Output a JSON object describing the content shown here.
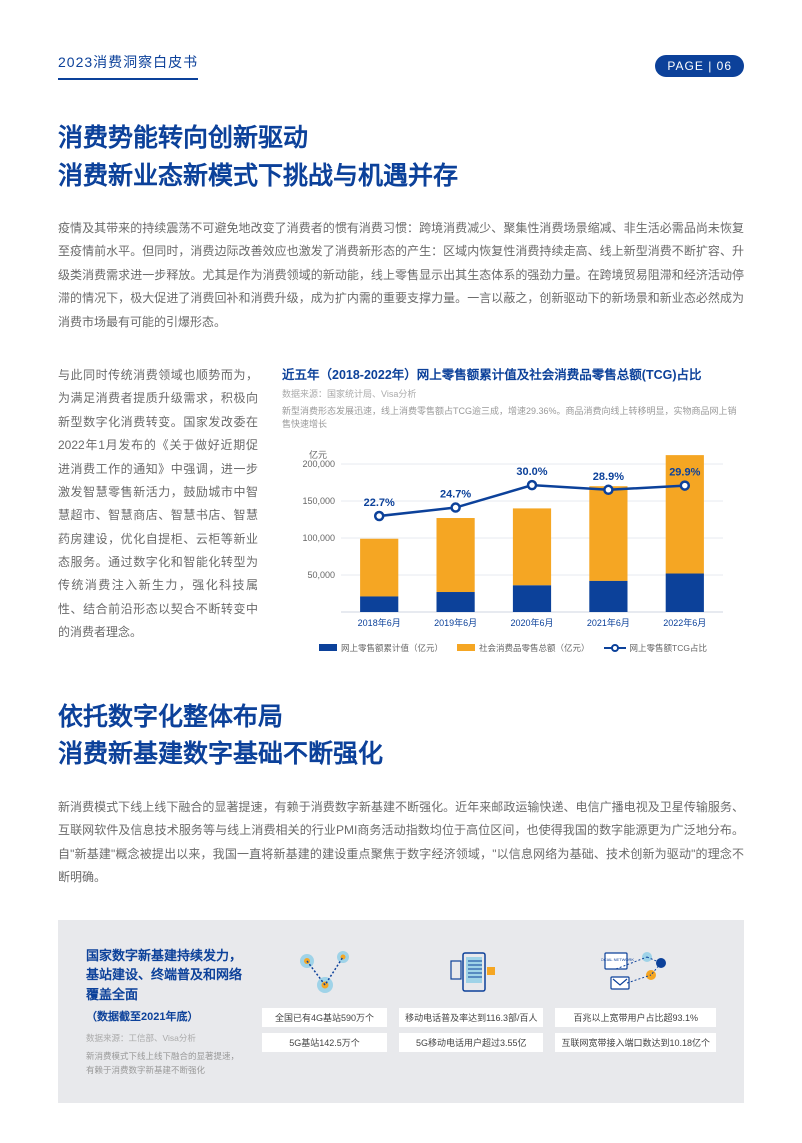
{
  "header": {
    "doc_title": "2023消费洞察白皮书",
    "page_label": "PAGE | 06"
  },
  "section1": {
    "heading_line1": "消费势能转向创新驱动",
    "heading_line2": "消费新业态新模式下挑战与机遇并存",
    "body": "疫情及其带来的持续震荡不可避免地改变了消费者的惯有消费习惯：跨境消费减少、聚集性消费场景缩减、非生活必需品尚未恢复至疫情前水平。但同时，消费边际改善效应也激发了消费新形态的产生：区域内恢复性消费持续走高、线上新型消费不断扩容、升级类消费需求进一步释放。尤其是作为消费领域的新动能，线上零售显示出其生态体系的强劲力量。在跨境贸易阻滞和经济活动停滞的情况下，极大促进了消费回补和消费升级，成为扩内需的重要支撑力量。一言以蔽之，创新驱动下的新场景和新业态必然成为消费市场最有可能的引爆形态。",
    "left_col": "与此同时传统消费领域也顺势而为，为满足消费者提质升级需求，积极向新型数字化消费转变。国家发改委在2022年1月发布的《关于做好近期促进消费工作的通知》中强调，进一步激发智慧零售新活力，鼓励城市中智慧超市、智慧商店、智慧书店、智慧药房建设，优化自提柜、云柜等新业态服务。通过数字化和智能化转型为传统消费注入新生力，强化科技属性、结合前沿形态以契合不断转变中的消费者理念。"
  },
  "chart": {
    "title": "近五年（2018-2022年）网上零售额累计值及社会消费品零售总额(TCG)占比",
    "source": "数据来源：国家统计局、Visa分析",
    "subtitle": "新型消费形态发展迅速，线上消费零售额占TCG逾三成，增速29.36%。商品消费向线上转移明显，实物商品网上销售快速增长",
    "ylabel": "亿元",
    "categories": [
      "2018年6月",
      "2019年6月",
      "2020年6月",
      "2021年6月",
      "2022年6月"
    ],
    "online_retail": [
      78000,
      100000,
      104000,
      128000,
      160000
    ],
    "social_retail": [
      21000,
      27000,
      36000,
      42000,
      52000
    ],
    "tcg_pct": [
      "22.7%",
      "24.7%",
      "30.0%",
      "28.9%",
      "29.9%"
    ],
    "tcg_values": [
      22.7,
      24.7,
      30.0,
      28.9,
      29.9
    ],
    "ylim": [
      0,
      200000
    ],
    "yticks": [
      50000,
      100000,
      150000,
      200000
    ],
    "colors": {
      "online_retail": "#0c419a",
      "social_retail": "#f5a623",
      "line": "#0c419a",
      "background": "#ffffff",
      "grid": "#cfd6e0",
      "axis_text": "#666"
    },
    "legend": {
      "online": "网上零售额累计值（亿元）",
      "social": "社会消费品零售总额（亿元）",
      "tcg": "网上零售额TCG占比"
    },
    "bar_width": 0.5
  },
  "section2": {
    "heading_line1": "依托数字化整体布局",
    "heading_line2": "消费新基建数字基础不断强化",
    "body": "新消费模式下线上线下融合的显著提速，有赖于消费数字新基建不断强化。近年来邮政运输快递、电信广播电视及卫星传输服务、互联网软件及信息技术服务等与线上消费相关的行业PMI商务活动指数均位于高位区间，也使得我国的数字能源更为广泛地分布。自\"新基建\"概念被提出以来，我国一直将新基建的建设重点聚焦于数字经济领域，\"以信息网络为基础、技术创新为驱动\"的理念不断明确。"
  },
  "infobox": {
    "title": "国家数字新基建持续发力，基站建设、终端普及和网络覆盖全面",
    "sub": "（数据截至2021年底）",
    "source": "数据来源：工信部、Visa分析",
    "note": "新消费模式下线上线下融合的显著提速，有赖于消费数字新基建不断强化",
    "cards": [
      {
        "stat1": "全国已有4G基站590万个",
        "stat2": "5G基站142.5万个"
      },
      {
        "stat1": "移动电话普及率达到116.3部/百人",
        "stat2": "5G移动电话用户超过3.55亿"
      },
      {
        "stat1": "百兆以上宽带用户占比超93.1%",
        "stat2": "互联网宽带接入端口数达到10.18亿个"
      }
    ]
  }
}
